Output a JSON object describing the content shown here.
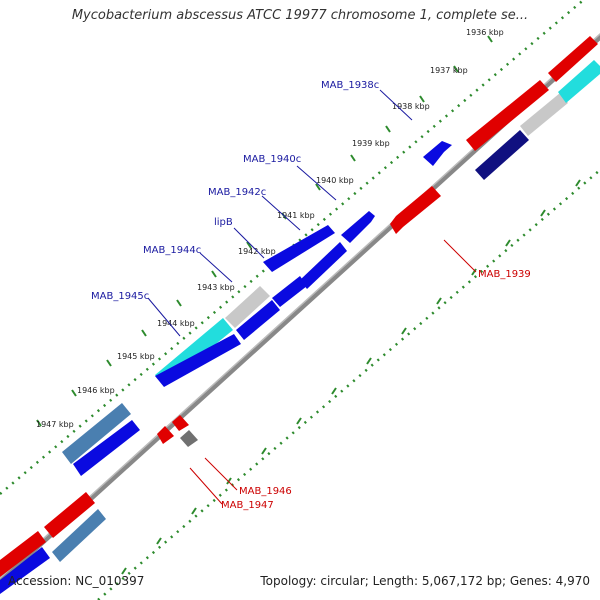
{
  "title": "Mycobacterium abscessus ATCC 19977 chromosome 1, complete se...",
  "accession_text": "Accession: NC_010397",
  "summary_text": "Topology: circular; Length: 5,067,172 bp; Genes: 4,970",
  "colors": {
    "backbone": "#808080",
    "tick": "#2e8b2e",
    "forward_gene": "#0a0ae0",
    "reverse_gene": "#e00000",
    "label_forward": "#1a1aa0",
    "label_reverse": "#cc0000",
    "gray_gene": "#c8c8c8",
    "cyan_gene": "#22dddd",
    "steel_gene": "#4a7fb0",
    "navy_gene": "#101080",
    "dark_gray_gene": "#707070"
  },
  "kbp_labels": [
    "1936 kbp",
    "1937 kbp",
    "1938 kbp",
    "1939 kbp",
    "1940 kbp",
    "1941 kbp",
    "1942 kbp",
    "1943 kbp",
    "1944 kbp",
    "1945 kbp",
    "1946 kbp",
    "1947 kbp"
  ],
  "gene_labels_forward": [
    "MAB_1938c",
    "MAB_1940c",
    "MAB_1942c",
    "lipB",
    "MAB_1944c",
    "MAB_1945c"
  ],
  "gene_labels_reverse": [
    "MAB_1939",
    "MAB_1946",
    "MAB_1947"
  ]
}
